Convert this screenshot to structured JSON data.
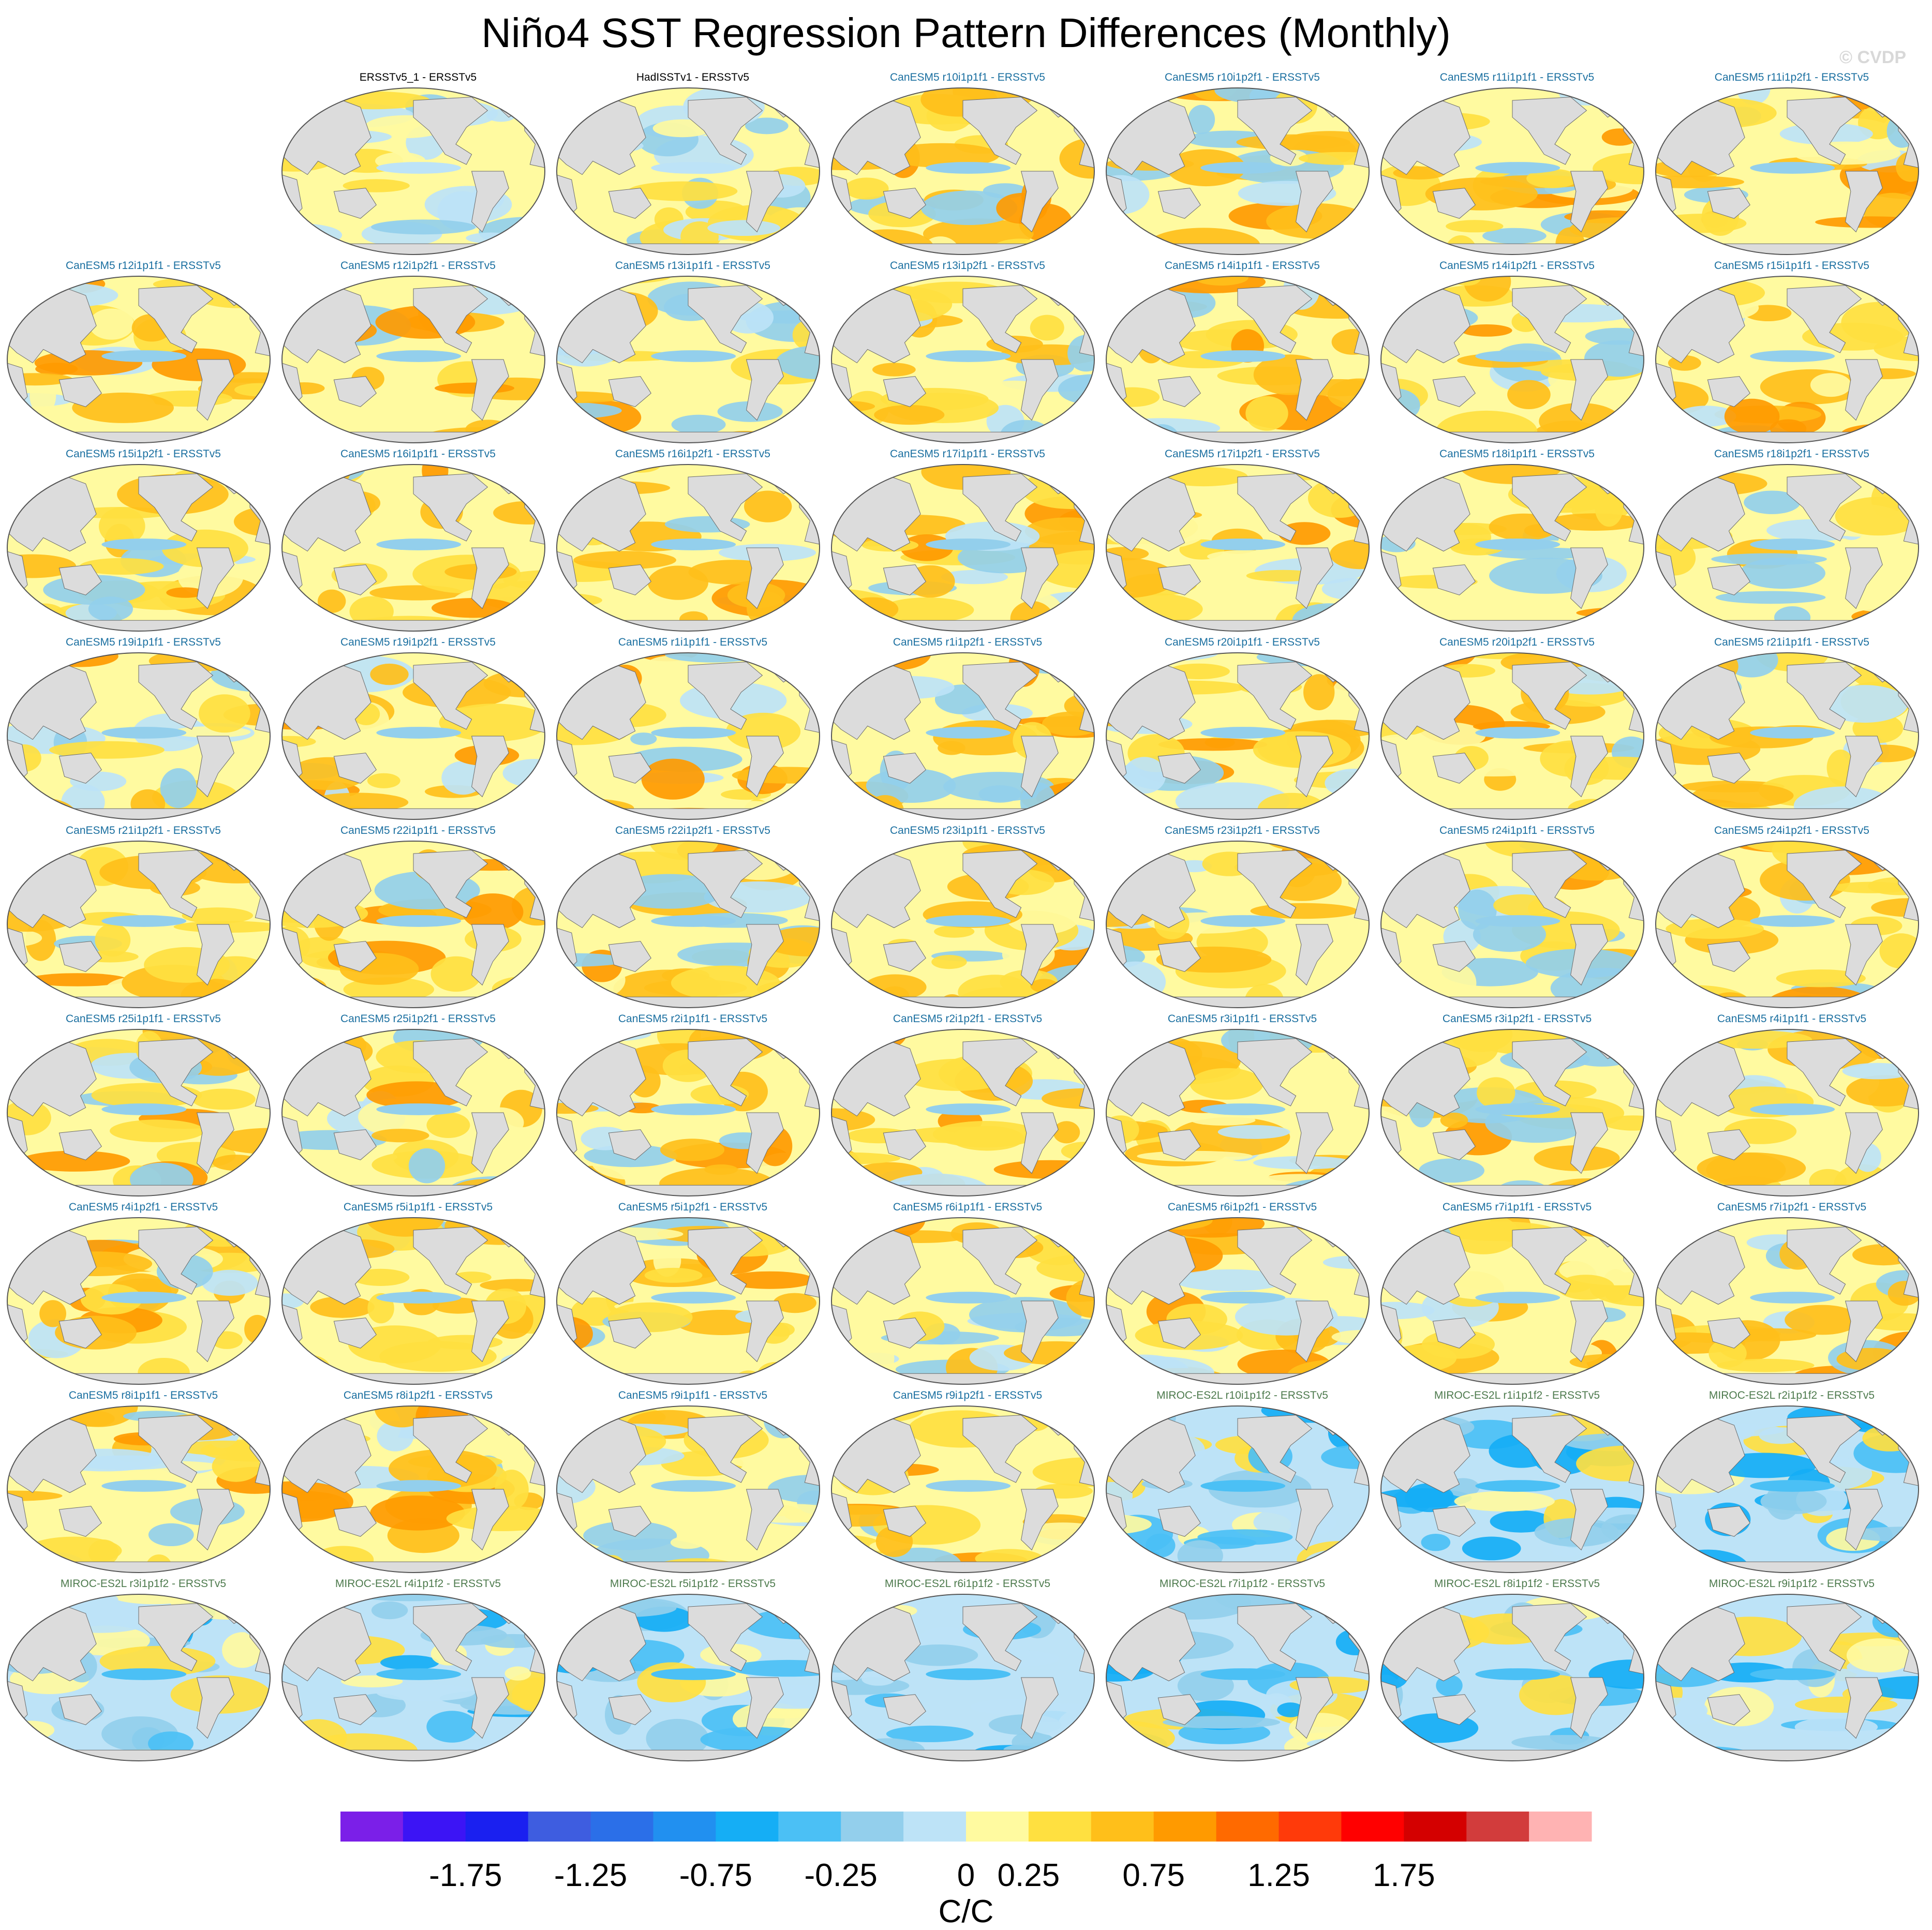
{
  "title": "Niño4 SST Regression Pattern Differences (Monthly)",
  "watermark": "© CVDP",
  "panels": [
    {
      "label": "ERSSTv5_1 - ERSSTv5",
      "group": "obs"
    },
    {
      "label": "HadISSTv1 - ERSSTv5",
      "group": "obs"
    },
    {
      "label": "CanESM5 r10i1p1f1 - ERSSTv5",
      "group": "canesm"
    },
    {
      "label": "CanESM5 r10i1p2f1 - ERSSTv5",
      "group": "canesm"
    },
    {
      "label": "CanESM5 r11i1p1f1 - ERSSTv5",
      "group": "canesm"
    },
    {
      "label": "CanESM5 r11i1p2f1 - ERSSTv5",
      "group": "canesm"
    },
    {
      "label": "CanESM5 r12i1p1f1 - ERSSTv5",
      "group": "canesm"
    },
    {
      "label": "CanESM5 r12i1p2f1 - ERSSTv5",
      "group": "canesm"
    },
    {
      "label": "CanESM5 r13i1p1f1 - ERSSTv5",
      "group": "canesm"
    },
    {
      "label": "CanESM5 r13i1p2f1 - ERSSTv5",
      "group": "canesm"
    },
    {
      "label": "CanESM5 r14i1p1f1 - ERSSTv5",
      "group": "canesm"
    },
    {
      "label": "CanESM5 r14i1p2f1 - ERSSTv5",
      "group": "canesm"
    },
    {
      "label": "CanESM5 r15i1p1f1 - ERSSTv5",
      "group": "canesm"
    },
    {
      "label": "CanESM5 r15i1p2f1 - ERSSTv5",
      "group": "canesm"
    },
    {
      "label": "CanESM5 r16i1p1f1 - ERSSTv5",
      "group": "canesm"
    },
    {
      "label": "CanESM5 r16i1p2f1 - ERSSTv5",
      "group": "canesm"
    },
    {
      "label": "CanESM5 r17i1p1f1 - ERSSTv5",
      "group": "canesm"
    },
    {
      "label": "CanESM5 r17i1p2f1 - ERSSTv5",
      "group": "canesm"
    },
    {
      "label": "CanESM5 r18i1p1f1 - ERSSTv5",
      "group": "canesm"
    },
    {
      "label": "CanESM5 r18i1p2f1 - ERSSTv5",
      "group": "canesm"
    },
    {
      "label": "CanESM5 r19i1p1f1 - ERSSTv5",
      "group": "canesm"
    },
    {
      "label": "CanESM5 r19i1p2f1 - ERSSTv5",
      "group": "canesm"
    },
    {
      "label": "CanESM5 r1i1p1f1 - ERSSTv5",
      "group": "canesm"
    },
    {
      "label": "CanESM5 r1i1p2f1 - ERSSTv5",
      "group": "canesm"
    },
    {
      "label": "CanESM5 r20i1p1f1 - ERSSTv5",
      "group": "canesm"
    },
    {
      "label": "CanESM5 r20i1p2f1 - ERSSTv5",
      "group": "canesm"
    },
    {
      "label": "CanESM5 r21i1p1f1 - ERSSTv5",
      "group": "canesm"
    },
    {
      "label": "CanESM5 r21i1p2f1 - ERSSTv5",
      "group": "canesm"
    },
    {
      "label": "CanESM5 r22i1p1f1 - ERSSTv5",
      "group": "canesm"
    },
    {
      "label": "CanESM5 r22i1p2f1 - ERSSTv5",
      "group": "canesm"
    },
    {
      "label": "CanESM5 r23i1p1f1 - ERSSTv5",
      "group": "canesm"
    },
    {
      "label": "CanESM5 r23i1p2f1 - ERSSTv5",
      "group": "canesm"
    },
    {
      "label": "CanESM5 r24i1p1f1 - ERSSTv5",
      "group": "canesm"
    },
    {
      "label": "CanESM5 r24i1p2f1 - ERSSTv5",
      "group": "canesm"
    },
    {
      "label": "CanESM5 r25i1p1f1 - ERSSTv5",
      "group": "canesm"
    },
    {
      "label": "CanESM5 r25i1p2f1 - ERSSTv5",
      "group": "canesm"
    },
    {
      "label": "CanESM5 r2i1p1f1 - ERSSTv5",
      "group": "canesm"
    },
    {
      "label": "CanESM5 r2i1p2f1 - ERSSTv5",
      "group": "canesm"
    },
    {
      "label": "CanESM5 r3i1p1f1 - ERSSTv5",
      "group": "canesm"
    },
    {
      "label": "CanESM5 r3i1p2f1 - ERSSTv5",
      "group": "canesm"
    },
    {
      "label": "CanESM5 r4i1p1f1 - ERSSTv5",
      "group": "canesm"
    },
    {
      "label": "CanESM5 r4i1p2f1 - ERSSTv5",
      "group": "canesm"
    },
    {
      "label": "CanESM5 r5i1p1f1 - ERSSTv5",
      "group": "canesm"
    },
    {
      "label": "CanESM5 r5i1p2f1 - ERSSTv5",
      "group": "canesm"
    },
    {
      "label": "CanESM5 r6i1p1f1 - ERSSTv5",
      "group": "canesm"
    },
    {
      "label": "CanESM5 r6i1p2f1 - ERSSTv5",
      "group": "canesm"
    },
    {
      "label": "CanESM5 r7i1p1f1 - ERSSTv5",
      "group": "canesm"
    },
    {
      "label": "CanESM5 r7i1p2f1 - ERSSTv5",
      "group": "canesm"
    },
    {
      "label": "CanESM5 r8i1p1f1 - ERSSTv5",
      "group": "canesm"
    },
    {
      "label": "CanESM5 r8i1p2f1 - ERSSTv5",
      "group": "canesm"
    },
    {
      "label": "CanESM5 r9i1p1f1 - ERSSTv5",
      "group": "canesm"
    },
    {
      "label": "CanESM5 r9i1p2f1 - ERSSTv5",
      "group": "canesm"
    },
    {
      "label": "MIROC-ES2L r10i1p1f2 - ERSSTv5",
      "group": "miroc"
    },
    {
      "label": "MIROC-ES2L r1i1p1f2 - ERSSTv5",
      "group": "miroc"
    },
    {
      "label": "MIROC-ES2L r2i1p1f2 - ERSSTv5",
      "group": "miroc"
    },
    {
      "label": "MIROC-ES2L r3i1p1f2 - ERSSTv5",
      "group": "miroc"
    },
    {
      "label": "MIROC-ES2L r4i1p1f2 - ERSSTv5",
      "group": "miroc"
    },
    {
      "label": "MIROC-ES2L r5i1p1f2 - ERSSTv5",
      "group": "miroc"
    },
    {
      "label": "MIROC-ES2L r6i1p1f2 - ERSSTv5",
      "group": "miroc"
    },
    {
      "label": "MIROC-ES2L r7i1p1f2 - ERSSTv5",
      "group": "miroc"
    },
    {
      "label": "MIROC-ES2L r8i1p1f2 - ERSSTv5",
      "group": "miroc"
    },
    {
      "label": "MIROC-ES2L r9i1p1f2 - ERSSTv5",
      "group": "miroc"
    }
  ],
  "label_colors": {
    "obs": "#000000",
    "canesm": "#1a6fa0",
    "miroc": "#4d7a4d"
  },
  "land_color": "#dcdcdc",
  "chart_data": {
    "type": "heatmap",
    "projection": "robinson (Pacific-centered)",
    "units": "C/C",
    "colorbar": {
      "colors": [
        "#7b1fe8",
        "#3c14f5",
        "#1a20f0",
        "#3e5de0",
        "#2b6fe8",
        "#2190f0",
        "#15aef5",
        "#4bc0f5",
        "#93cfec",
        "#bde3f7",
        "#fffaa0",
        "#ffe040",
        "#ffbf1a",
        "#ff9a00",
        "#ff6a00",
        "#ff3a0a",
        "#ff0000",
        "#d40000",
        "#d23c3c",
        "#ffb3b3"
      ],
      "tick_labels": [
        "-1.75",
        "-1.25",
        "-0.75",
        "-0.25",
        "0",
        "0.25",
        "0.75",
        "1.25",
        "1.75"
      ],
      "levels": [
        -2.25,
        -2,
        -1.75,
        -1.5,
        -1.25,
        -1,
        -0.75,
        -0.5,
        -0.25,
        0,
        0.25,
        0.5,
        0.75,
        1,
        1.25,
        1.5,
        1.75,
        2,
        2.25
      ]
    }
  }
}
